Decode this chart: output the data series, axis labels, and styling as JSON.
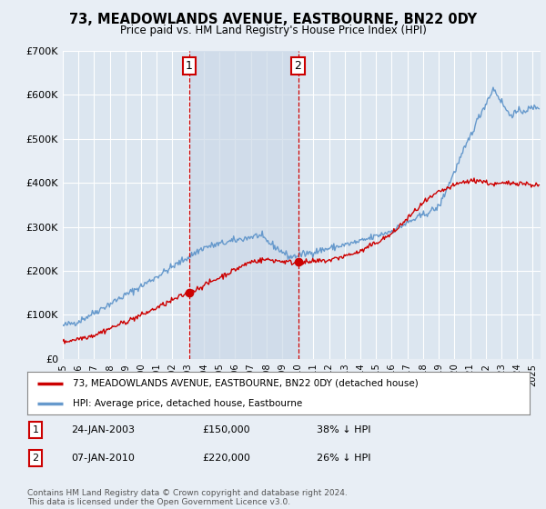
{
  "title": "73, MEADOWLANDS AVENUE, EASTBOURNE, BN22 0DY",
  "subtitle": "Price paid vs. HM Land Registry's House Price Index (HPI)",
  "ylabel_ticks": [
    "£0",
    "£100K",
    "£200K",
    "£300K",
    "£400K",
    "£500K",
    "£600K",
    "£700K"
  ],
  "ytick_vals": [
    0,
    100000,
    200000,
    300000,
    400000,
    500000,
    600000,
    700000
  ],
  "ylim": [
    0,
    700000
  ],
  "xlim_start": 1995.0,
  "xlim_end": 2025.5,
  "marker1_x": 2003.07,
  "marker1_label": "1",
  "marker1_date": "24-JAN-2003",
  "marker1_price": "£150,000",
  "marker1_hpi": "38% ↓ HPI",
  "marker1_price_val": 150000,
  "marker2_x": 2010.02,
  "marker2_label": "2",
  "marker2_date": "07-JAN-2010",
  "marker2_price": "£220,000",
  "marker2_hpi": "26% ↓ HPI",
  "marker2_price_val": 220000,
  "legend_line1": "73, MEADOWLANDS AVENUE, EASTBOURNE, BN22 0DY (detached house)",
  "legend_line2": "HPI: Average price, detached house, Eastbourne",
  "footnote": "Contains HM Land Registry data © Crown copyright and database right 2024.\nThis data is licensed under the Open Government Licence v3.0.",
  "line_color_red": "#cc0000",
  "line_color_blue": "#6699cc",
  "background_color": "#e8eef5",
  "plot_bg": "#dce6f0",
  "shade_color": "#ccd9e8",
  "grid_color": "#ffffff",
  "vline_color": "#cc0000",
  "marker_box_color": "#cc0000"
}
